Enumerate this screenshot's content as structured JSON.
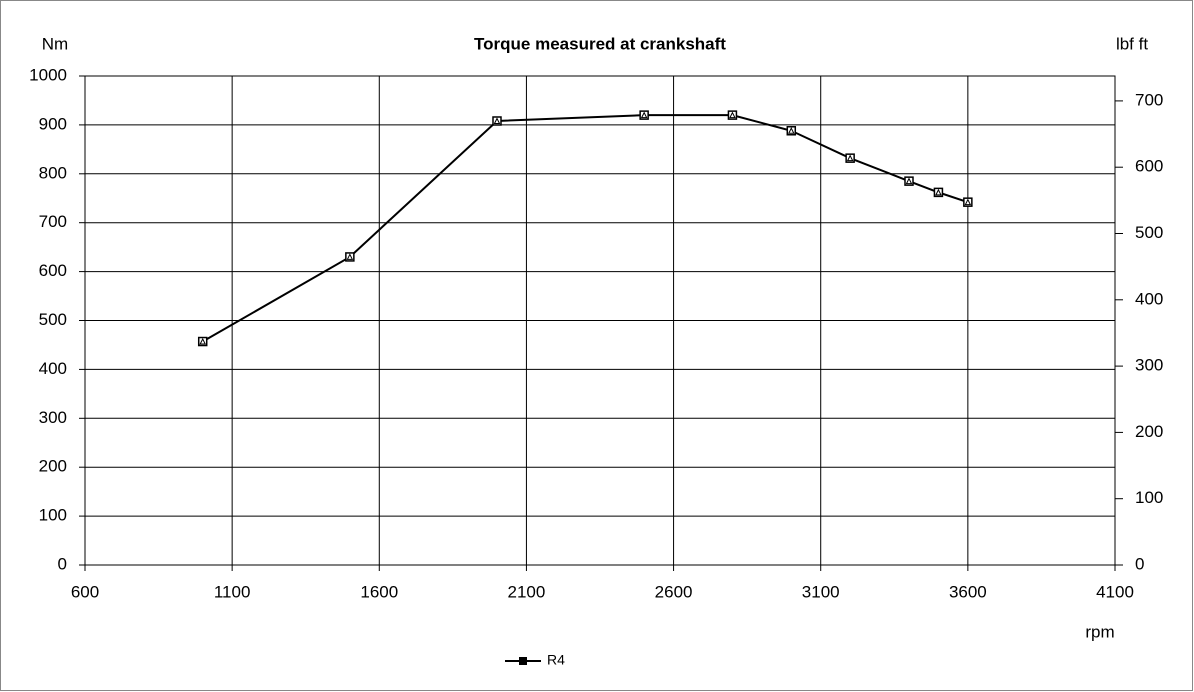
{
  "chart_data": {
    "type": "line",
    "title": "Torque measured at crankshaft",
    "y_label": "Nm",
    "y2_label": "lbf ft",
    "x_label": "rpm",
    "x": [
      1000,
      1500,
      2000,
      2500,
      2800,
      3000,
      3200,
      3400,
      3500,
      3600
    ],
    "series": [
      {
        "name": "R4",
        "color": "#000000",
        "values": [
          457,
          630,
          908,
          920,
          920,
          888,
          832,
          785,
          762,
          742
        ]
      }
    ],
    "xlim": [
      600,
      4100
    ],
    "xticks": [
      600,
      1100,
      1600,
      2100,
      2600,
      3100,
      3600,
      4100
    ],
    "ylim": [
      0,
      1000
    ],
    "yticks": [
      0,
      100,
      200,
      300,
      400,
      500,
      600,
      700,
      800,
      900,
      1000
    ],
    "y2lim": [
      0,
      737.56
    ],
    "y2ticks": [
      0,
      100,
      200,
      300,
      400,
      500,
      600,
      700
    ],
    "grid": true,
    "legend": "bottom"
  }
}
